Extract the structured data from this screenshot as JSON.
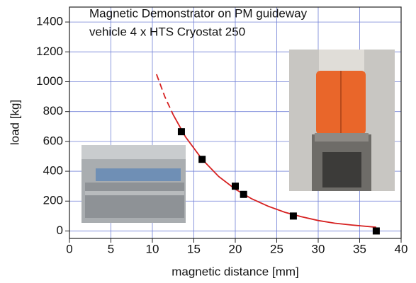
{
  "chart_data": {
    "type": "scatter",
    "title": [
      "Magnetic Demonstrator on PM guideway",
      "vehicle 4 x HTS Cryostat 250"
    ],
    "x_label": "magnetic distance [mm]",
    "y_label": "load [kg]",
    "xlim": [
      0,
      40
    ],
    "ylim": [
      -50,
      1500
    ],
    "xticks": [
      0,
      5,
      10,
      15,
      20,
      25,
      30,
      35,
      40
    ],
    "yticks": [
      0,
      200,
      400,
      600,
      800,
      1000,
      1200,
      1400
    ],
    "grid": true,
    "grid_color": "#6f7fd6",
    "series": [
      {
        "type": "scatter",
        "color": "#000000",
        "x": [
          13.5,
          16,
          20,
          21,
          27,
          37
        ],
        "values": [
          665,
          480,
          300,
          245,
          100,
          0
        ]
      },
      {
        "type": "line",
        "color": "#d62020",
        "dashed": true,
        "x": [
          10.5,
          11.5,
          12.5
        ],
        "values": [
          1050,
          900,
          780
        ]
      },
      {
        "type": "line",
        "color": "#d62020",
        "dashed": false,
        "x": [
          12.5,
          14,
          16,
          18,
          20,
          22,
          24,
          26,
          28,
          30,
          32,
          34,
          37
        ],
        "values": [
          780,
          630,
          480,
          365,
          280,
          215,
          165,
          125,
          95,
          70,
          52,
          40,
          25
        ]
      }
    ]
  }
}
